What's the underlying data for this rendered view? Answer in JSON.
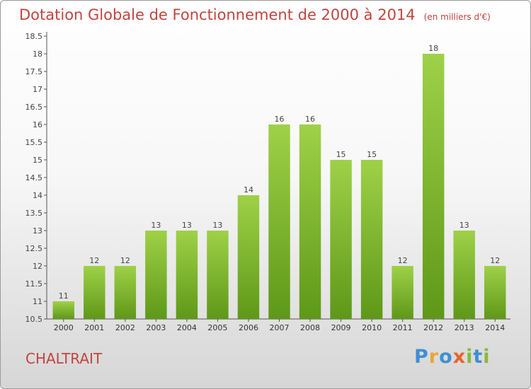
{
  "header": {
    "title": "Dotation Globale de Fonctionnement de 2000 à 2014",
    "subtitle": "(en milliers d'€)"
  },
  "commune": "CHALTRAIT",
  "logo": {
    "text": "Proxiti",
    "letter_colors": [
      "#3f8fd4",
      "#e8a53a",
      "#3f8fd4",
      "#e8632a",
      "#8ab83a",
      "#3f8fd4",
      "#8ab83a"
    ]
  },
  "chart_data": {
    "type": "bar",
    "title": "Dotation Globale de Fonctionnement de 2000 à 2014",
    "subtitle": "(en milliers d'€)",
    "categories": [
      "2000",
      "2001",
      "2002",
      "2003",
      "2004",
      "2005",
      "2006",
      "2007",
      "2008",
      "2009",
      "2010",
      "2011",
      "2012",
      "2013",
      "2014"
    ],
    "values": [
      11,
      12,
      12,
      13,
      13,
      13,
      14,
      16,
      16,
      15,
      15,
      12,
      18,
      13,
      12
    ],
    "ylim": [
      10.5,
      18.5
    ],
    "yticks": [
      "10.5",
      "11",
      "11.5",
      "12",
      "12.5",
      "13",
      "13.5",
      "14",
      "14.5",
      "15",
      "15.5",
      "16",
      "16.5",
      "17",
      "17.5",
      "18",
      "18.5"
    ],
    "xlabel": "",
    "ylabel": "",
    "grid": false,
    "colors": {
      "bar_top": "#9fd148",
      "bar_bottom": "#5e9818",
      "title": "#c0453e",
      "axis": "#555555",
      "label": "#444444"
    }
  }
}
